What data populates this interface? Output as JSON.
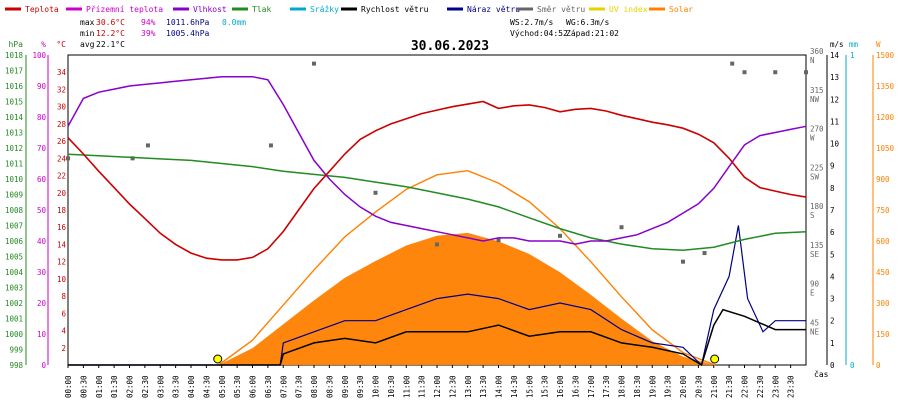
{
  "header": {
    "date": "30.06.2023",
    "stats": {
      "max_label": "max",
      "max_temp": "30.6°C",
      "max_hum": "94%",
      "max_press": "1011.6hPa",
      "max_rain": "0.0mm",
      "min_label": "min",
      "min_temp": "12.2°C",
      "min_hum": "39%",
      "min_press": "1005.4hPa",
      "avg_label": "avg",
      "avg_temp": "22.1°C"
    },
    "wind": {
      "ws": "WS:2.7m/s",
      "wg": "WG:6.3m/s",
      "sunrise": "Východ:04:52",
      "sunset": "Západ:21:02"
    }
  },
  "legend": [
    {
      "name": "Teplota",
      "color": "#cc0000"
    },
    {
      "name": "Přízemní teplota",
      "color": "#cc00cc"
    },
    {
      "name": "Vlhkost",
      "color": "#8800cc"
    },
    {
      "name": "Tlak",
      "color": "#228b22"
    },
    {
      "name": "Srážky",
      "color": "#00aacc"
    },
    {
      "name": "Rychlost větru",
      "color": "#000000"
    },
    {
      "name": "Náraz větru",
      "color": "#000088"
    },
    {
      "name": "Směr větru",
      "color": "#666666"
    },
    {
      "name": "UV index",
      "color": "#e6d200"
    },
    {
      "name": "Solar",
      "color": "#ff8000"
    }
  ],
  "axes": {
    "hpa": {
      "unit": "hPa",
      "color": "#228b22",
      "ticks": [
        "998",
        "999",
        "1000",
        "1001",
        "1002",
        "1003",
        "1004",
        "1005",
        "1006",
        "1007",
        "1008",
        "1009",
        "1010",
        "1011",
        "1012",
        "1013",
        "1014",
        "1015",
        "1016",
        "1017",
        "1018"
      ]
    },
    "pct": {
      "unit": "%",
      "color": "#cc00cc",
      "ticks": [
        "0",
        "10",
        "20",
        "30",
        "40",
        "50",
        "60",
        "70",
        "80",
        "90",
        "100"
      ]
    },
    "temp": {
      "unit": "°C",
      "color": "#cc0000",
      "ticks": [
        "2",
        "4",
        "6",
        "8",
        "10",
        "12",
        "14",
        "16",
        "18",
        "20",
        "22",
        "24",
        "26",
        "28",
        "30",
        "32",
        "34"
      ]
    },
    "dir": {
      "ticks": [
        {
          "deg": "45",
          "name": "NE"
        },
        {
          "deg": "90",
          "name": "E"
        },
        {
          "deg": "135",
          "name": "SE"
        },
        {
          "deg": "180",
          "name": "S"
        },
        {
          "deg": "225",
          "name": "SW"
        },
        {
          "deg": "270",
          "name": "W"
        },
        {
          "deg": "315",
          "name": "NW"
        },
        {
          "deg": "360",
          "name": "N"
        }
      ]
    },
    "ms": {
      "unit": "m/s",
      "color": "#000000",
      "ticks": [
        "0",
        "1",
        "2",
        "3",
        "4",
        "5",
        "6",
        "7",
        "8",
        "9",
        "10",
        "11",
        "12",
        "13",
        "14"
      ]
    },
    "mm": {
      "unit": "mm",
      "color": "#00aacc",
      "ticks": [
        "0",
        "1"
      ]
    },
    "w": {
      "unit": "W",
      "color": "#ff8000",
      "ticks": [
        "0",
        "150",
        "300",
        "450",
        "600",
        "750",
        "900",
        "1050",
        "1200",
        "1350",
        "1500"
      ]
    },
    "time_label": "čas",
    "x_ticks": [
      "00:00",
      "00:30",
      "01:00",
      "01:30",
      "02:00",
      "02:30",
      "03:00",
      "03:30",
      "04:00",
      "04:30",
      "05:00",
      "05:30",
      "06:00",
      "06:30",
      "07:00",
      "07:30",
      "08:00",
      "08:30",
      "09:00",
      "09:30",
      "10:00",
      "10:30",
      "11:00",
      "11:30",
      "12:00",
      "12:30",
      "13:00",
      "13:30",
      "14:00",
      "14:30",
      "15:00",
      "15:30",
      "16:00",
      "16:30",
      "17:00",
      "17:30",
      "18:00",
      "18:30",
      "19:00",
      "19:30",
      "20:00",
      "20:30",
      "21:00",
      "21:30",
      "22:00",
      "22:30",
      "23:00",
      "23:30"
    ]
  },
  "chart_data": {
    "type": "line",
    "title": "30.06.2023",
    "x_unit": "hour",
    "xlim": [
      0,
      24
    ],
    "series": [
      {
        "name": "Teplota",
        "unit": "°C",
        "color": "#cc0000",
        "x": [
          0,
          0.5,
          1,
          1.5,
          2,
          2.5,
          3,
          3.5,
          4,
          4.5,
          5,
          5.5,
          6,
          6.5,
          7,
          7.5,
          8,
          8.5,
          9,
          9.5,
          10,
          10.5,
          11,
          11.5,
          12,
          12.5,
          13,
          13.5,
          14,
          14.5,
          15,
          15.5,
          16,
          16.5,
          17,
          17.5,
          18,
          18.5,
          19,
          19.5,
          20,
          20.5,
          21,
          21.5,
          22,
          22.5,
          23,
          23.5,
          24
        ],
        "y": [
          26.4,
          24.5,
          22.5,
          20.6,
          18.7,
          17.0,
          15.3,
          14.0,
          13.0,
          12.4,
          12.2,
          12.2,
          12.5,
          13.5,
          15.5,
          18.0,
          20.5,
          22.5,
          24.5,
          26.2,
          27.2,
          28.0,
          28.6,
          29.2,
          29.6,
          30.0,
          30.3,
          30.6,
          29.8,
          30.1,
          30.2,
          29.9,
          29.4,
          29.7,
          29.8,
          29.5,
          29.0,
          28.6,
          28.2,
          27.9,
          27.5,
          26.8,
          25.8,
          24.0,
          21.8,
          20.6,
          20.2,
          19.8,
          19.5
        ]
      },
      {
        "name": "Vlhkost",
        "unit": "%",
        "color": "#8800cc",
        "x": [
          0,
          0.5,
          1,
          1.5,
          2,
          2.5,
          3,
          3.5,
          4,
          4.5,
          5,
          5.5,
          6,
          6.5,
          7,
          7.5,
          8,
          8.5,
          9,
          9.5,
          10,
          10.5,
          11,
          11.5,
          12,
          12.5,
          13,
          13.5,
          14,
          14.5,
          15,
          15.5,
          16,
          16.5,
          17,
          17.5,
          18,
          18.5,
          19,
          19.5,
          20,
          20.5,
          21,
          21.5,
          22,
          22.5,
          23,
          23.5,
          24
        ],
        "y": [
          77,
          86,
          88,
          89,
          90,
          90.5,
          91,
          91.5,
          92,
          92.5,
          93,
          93,
          93,
          92,
          84,
          75,
          66,
          60,
          55,
          51,
          48,
          46,
          45,
          44,
          43,
          42,
          41,
          40,
          41,
          41,
          40,
          40,
          40,
          39,
          40,
          40,
          41,
          42,
          44,
          46,
          49,
          52,
          57,
          64,
          71,
          74,
          75,
          76,
          77
        ]
      },
      {
        "name": "Tlak",
        "unit": "hPa",
        "color": "#228b22",
        "x": [
          0,
          1,
          2,
          3,
          4,
          5,
          6,
          7,
          8,
          9,
          10,
          11,
          12,
          13,
          14,
          15,
          16,
          17,
          18,
          19,
          20,
          21,
          22,
          23,
          24
        ],
        "y": [
          1011.6,
          1011.5,
          1011.4,
          1011.3,
          1011.2,
          1011.0,
          1010.8,
          1010.5,
          1010.3,
          1010.1,
          1009.8,
          1009.5,
          1009.1,
          1008.7,
          1008.2,
          1007.5,
          1006.8,
          1006.2,
          1005.8,
          1005.5,
          1005.4,
          1005.6,
          1006.1,
          1006.5,
          1006.6
        ]
      },
      {
        "name": "Solar",
        "unit": "W",
        "color": "#ff8000",
        "x": [
          4.9,
          6,
          7,
          8,
          9,
          10,
          11,
          12,
          13,
          14,
          15,
          16,
          17,
          18,
          19,
          20,
          21.05
        ],
        "y": [
          0,
          120,
          290,
          460,
          620,
          740,
          850,
          920,
          940,
          880,
          790,
          660,
          500,
          330,
          170,
          60,
          0
        ]
      },
      {
        "name": "Rychlost větru",
        "unit": "m/s",
        "color": "#000000",
        "x": [
          0,
          6.9,
          7,
          8,
          9,
          10,
          11,
          12,
          13,
          14,
          15,
          16,
          17,
          18,
          19,
          20,
          20.6,
          21,
          21.3,
          22,
          23,
          24
        ],
        "y": [
          0,
          0,
          0.5,
          1.0,
          1.2,
          1.0,
          1.5,
          1.5,
          1.5,
          1.8,
          1.3,
          1.5,
          1.5,
          1.0,
          0.8,
          0.5,
          0,
          1.8,
          2.5,
          2.2,
          1.6,
          1.6
        ]
      },
      {
        "name": "Náraz větru",
        "unit": "m/s",
        "color": "#000088",
        "x": [
          0,
          6.9,
          7,
          8,
          9,
          10,
          11,
          12,
          13,
          14,
          15,
          16,
          17,
          18,
          19,
          20,
          20.6,
          21,
          21.5,
          21.8,
          22.1,
          22.6,
          23,
          24
        ],
        "y": [
          0,
          0,
          1.0,
          1.5,
          2.0,
          2.0,
          2.5,
          3.0,
          3.2,
          3.0,
          2.5,
          2.8,
          2.5,
          1.6,
          1.0,
          0.8,
          0,
          2.5,
          4.0,
          6.3,
          3.0,
          1.5,
          2.0,
          2.0
        ]
      },
      {
        "name": "Směr větru",
        "unit": "°",
        "color": "#666666",
        "x": [
          0,
          2.1,
          2.6,
          6.6,
          8,
          10,
          12,
          14,
          16,
          18,
          20,
          20.7,
          21.6,
          22,
          23,
          24
        ],
        "y": [
          240,
          240,
          255,
          255,
          350,
          200,
          140,
          145,
          150,
          160,
          120,
          130,
          350,
          340,
          340,
          340
        ]
      }
    ],
    "annotations": {
      "sunrise_hour": 4.87,
      "sunset_hour": 21.03
    }
  }
}
